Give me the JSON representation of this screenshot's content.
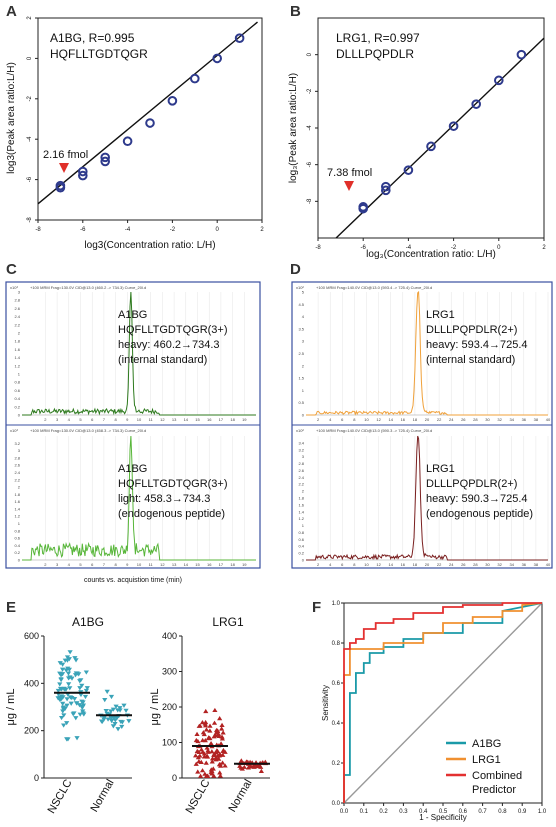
{
  "panels": {
    "A": {
      "letter": "A",
      "title_line1": "A1BG, R=0.995",
      "title_line2": "HQFLLTGDTQGR",
      "ylabel": "log3(Peak area ratio:L/H)",
      "xlabel": "log3(Concentration ratio: L/H)",
      "annotation": "2.16 fmol"
    },
    "B": {
      "letter": "B",
      "title_line1": "LRG1, R=0.997",
      "title_line2": "DLLLPQPDLR",
      "ylabel": "log₃(Peak area ratio:L/H)",
      "xlabel": "log₃(Concentration ratio: L/H)",
      "annotation": "7.38 fmol"
    },
    "C": {
      "letter": "C",
      "top_header": "+100 MRM Frag=130.0V CID@13.0 (460.2 -> 734.3) Curve_20l.d",
      "top_label": [
        "A1BG",
        "HQFLLTGDTQGR(3+)",
        "heavy: 460.2→734.3",
        "(internal standard)"
      ],
      "bottom_header": "+100 MRM Frag=130.0V CID@13.0 (458.3 -> 734.3) Curve_20l.d",
      "bottom_label": [
        "A1BG",
        "HQFLLTGDTQGR(3+)",
        "light: 458.3→734.3",
        "(endogenous peptide)"
      ],
      "xlabel": "counts vs. acquistion time (min)",
      "scale": "x10³"
    },
    "D": {
      "letter": "D",
      "top_header": "+100 MRM Frag=140.0V CID@13.0 (593.4 -> 725.4) Curve_20l.d",
      "top_label": [
        "LRG1",
        "DLLLPQPDLR(2+)",
        "heavy: 593.4→725.4",
        "(internal standard)"
      ],
      "bottom_header": "+100 MRM Frag=140.0V CID@13.0 (590.3 -> 725.4) Curve_20l.d",
      "bottom_label": [
        "LRG1",
        "DLLLPQPDLR(2+)",
        "heavy: 590.3→725.4",
        "(endogenous peptide)"
      ],
      "scale": "x10²"
    },
    "E": {
      "letter": "E",
      "left_title": "A1BG",
      "right_title": "LRG1",
      "ylabel": "μg / mL",
      "groups": [
        "NSCLC",
        "Normal"
      ]
    },
    "F": {
      "letter": "F",
      "xlabel": "1 - Specificity",
      "ylabel": "Sensitivity",
      "legend": [
        "A1BG",
        "LRG1",
        "Combined",
        "Predictor"
      ]
    }
  },
  "colors": {
    "accent_blue": "#2e3a8c",
    "annotation_red": "#e0302a",
    "trace_dark_green": "#2e7a1e",
    "trace_green": "#58b63a",
    "trace_orange": "#f0a13a",
    "trace_brown": "#7a1f1f",
    "dot_teal": "#3aa3b8",
    "dot_red": "#b22222",
    "roc_teal": "#1a9aa8",
    "roc_orange": "#f09030",
    "roc_red": "#e33030"
  },
  "chart_data": [
    {
      "type": "scatter",
      "panel": "A",
      "title": "A1BG, R=0.995",
      "xlabel": "log3(Concentration ratio: L/H)",
      "ylabel": "log3(Peak area ratio:L/H)",
      "xlim": [
        -8,
        2
      ],
      "ylim": [
        -8,
        2
      ],
      "xticks": [
        -8,
        -6,
        -4,
        -2,
        0,
        2
      ],
      "yticks": [
        -8,
        -6,
        -4,
        -2,
        0,
        2
      ],
      "x": [
        -7,
        -7,
        -6,
        -6,
        -5,
        -5,
        -4,
        -3,
        -2,
        -1,
        0,
        1
      ],
      "y": [
        -6.4,
        -6.3,
        -5.8,
        -5.6,
        -5.1,
        -4.9,
        -4.1,
        -3.2,
        -2.1,
        -1.0,
        0.0,
        1.0
      ],
      "fit": {
        "x": [
          -8,
          1.8
        ],
        "y": [
          -7.2,
          1.8
        ]
      }
    },
    {
      "type": "scatter",
      "panel": "B",
      "title": "LRG1, R=0.997",
      "xlabel": "log₃(Concentration ratio: L/H)",
      "ylabel": "log₃(Peak area ratio:L/H)",
      "xlim": [
        -8,
        2
      ],
      "ylim": [
        -10,
        2
      ],
      "xticks": [
        -8,
        -6,
        -4,
        -2,
        0,
        2
      ],
      "yticks": [
        -8,
        -6,
        -4,
        -2,
        0
      ],
      "x": [
        -6,
        -6,
        -5,
        -5,
        -4,
        -3,
        -2,
        -1,
        0,
        1
      ],
      "y": [
        -8.4,
        -8.3,
        -7.4,
        -7.2,
        -6.3,
        -5.0,
        -3.9,
        -2.7,
        -1.4,
        0.0
      ],
      "fit": {
        "x": [
          -7.2,
          2
        ],
        "y": [
          -10,
          0.9
        ]
      }
    },
    {
      "type": "line",
      "panel": "C-top",
      "xlim": [
        0,
        20
      ],
      "ylim": [
        0,
        3
      ],
      "xticks": [
        2,
        3,
        4,
        5,
        6,
        7,
        8,
        9,
        10,
        11,
        12,
        13,
        14,
        15,
        16,
        17,
        18,
        19
      ],
      "yticks": [
        0,
        0.2,
        0.4,
        0.6,
        0.8,
        1,
        1.2,
        1.4,
        1.6,
        1.8,
        2,
        2.2,
        2.4,
        2.6,
        2.8,
        3
      ],
      "peak_at": 9.3,
      "peak_height": 3.0,
      "baseline": 0.1
    },
    {
      "type": "line",
      "panel": "C-bottom",
      "xlim": [
        0,
        20
      ],
      "ylim": [
        0,
        3.4
      ],
      "xticks": [
        2,
        3,
        4,
        5,
        6,
        7,
        8,
        9,
        10,
        11,
        12,
        13,
        14,
        15,
        16,
        17,
        18,
        19
      ],
      "yticks": [
        0,
        0.2,
        0.4,
        0.6,
        0.8,
        1,
        1.2,
        1.4,
        1.6,
        1.8,
        2,
        2.2,
        2.4,
        2.6,
        2.8,
        3,
        3.2
      ],
      "peak_at": 9.3,
      "peak_height": 3.3,
      "baseline": 0.3
    },
    {
      "type": "line",
      "panel": "D-top",
      "xlim": [
        0,
        40
      ],
      "ylim": [
        0,
        5
      ],
      "xticks": [
        2,
        4,
        6,
        8,
        10,
        12,
        14,
        16,
        18,
        20,
        22,
        24,
        26,
        28,
        30,
        32,
        34,
        36,
        38,
        40
      ],
      "yticks": [
        0,
        0.5,
        1,
        1.5,
        2,
        2.5,
        3,
        3.5,
        4,
        4.5,
        5
      ],
      "peak_at": 18.5,
      "peak_height": 4.9,
      "baseline": 0.1
    },
    {
      "type": "line",
      "panel": "D-bottom",
      "xlim": [
        0,
        40
      ],
      "ylim": [
        0,
        3.6
      ],
      "xticks": [
        2,
        4,
        6,
        8,
        10,
        12,
        14,
        16,
        18,
        20,
        22,
        24,
        26,
        28,
        30,
        32,
        34,
        36,
        38,
        40
      ],
      "yticks": [
        0,
        0.2,
        0.4,
        0.6,
        0.8,
        1,
        1.2,
        1.4,
        1.6,
        1.8,
        2,
        2.2,
        2.4,
        2.6,
        2.8,
        3,
        3.2,
        3.4
      ],
      "peak_at": 18.5,
      "peak_height": 3.5,
      "baseline": 0.1
    },
    {
      "type": "scatter",
      "panel": "E-left",
      "title": "A1BG",
      "ylabel": "μg / mL",
      "categories": [
        "NSCLC",
        "Normal"
      ],
      "ylim": [
        0,
        600
      ],
      "yticks": [
        0,
        200,
        400,
        600
      ],
      "medians": [
        360,
        265
      ]
    },
    {
      "type": "scatter",
      "panel": "E-right",
      "title": "LRG1",
      "ylabel": "μg / mL",
      "categories": [
        "NSCLC",
        "Normal"
      ],
      "ylim": [
        0,
        400
      ],
      "yticks": [
        0,
        100,
        200,
        300,
        400
      ],
      "medians": [
        90,
        40
      ]
    },
    {
      "type": "line",
      "panel": "F",
      "xlabel": "1 - Specificity",
      "ylabel": "Sensitivity",
      "xlim": [
        0,
        1
      ],
      "ylim": [
        0,
        1
      ],
      "xticks": [
        0.0,
        0.1,
        0.2,
        0.3,
        0.4,
        0.5,
        0.6,
        0.7,
        0.8,
        0.9,
        1.0
      ],
      "yticks": [
        0.0,
        0.2,
        0.4,
        0.6,
        0.8,
        1.0
      ],
      "legend_position": "bottom-right",
      "series": [
        {
          "name": "A1BG",
          "x": [
            0,
            0,
            0.03,
            0.03,
            0.06,
            0.06,
            0.1,
            0.1,
            0.13,
            0.13,
            0.2,
            0.2,
            0.3,
            0.3,
            0.4,
            0.4,
            0.6,
            0.6,
            0.8,
            0.8,
            1
          ],
          "y": [
            0,
            0.14,
            0.14,
            0.55,
            0.55,
            0.65,
            0.65,
            0.7,
            0.7,
            0.75,
            0.75,
            0.78,
            0.78,
            0.82,
            0.82,
            0.85,
            0.85,
            0.9,
            0.9,
            0.96,
            1
          ]
        },
        {
          "name": "LRG1",
          "x": [
            0,
            0,
            0.03,
            0.03,
            0.2,
            0.2,
            0.4,
            0.4,
            0.5,
            0.5,
            0.65,
            0.65,
            0.8,
            0.8,
            0.9,
            0.9,
            1
          ],
          "y": [
            0,
            0.64,
            0.64,
            0.77,
            0.77,
            0.8,
            0.8,
            0.85,
            0.85,
            0.9,
            0.9,
            0.93,
            0.93,
            0.96,
            0.96,
            0.99,
            1
          ]
        },
        {
          "name": "Combined Predictor",
          "x": [
            0,
            0,
            0.03,
            0.03,
            0.06,
            0.06,
            0.1,
            0.1,
            0.16,
            0.16,
            0.25,
            0.25,
            0.35,
            0.35,
            0.5,
            0.5,
            0.6,
            0.6,
            0.8,
            0.8,
            1
          ],
          "y": [
            0,
            0.77,
            0.77,
            0.8,
            0.8,
            0.82,
            0.82,
            0.87,
            0.87,
            0.9,
            0.9,
            0.92,
            0.92,
            0.95,
            0.95,
            0.98,
            0.98,
            0.99,
            0.99,
            1,
            1
          ]
        },
        {
          "name": "",
          "x": [
            0,
            1
          ],
          "y": [
            0,
            1
          ]
        }
      ]
    }
  ]
}
